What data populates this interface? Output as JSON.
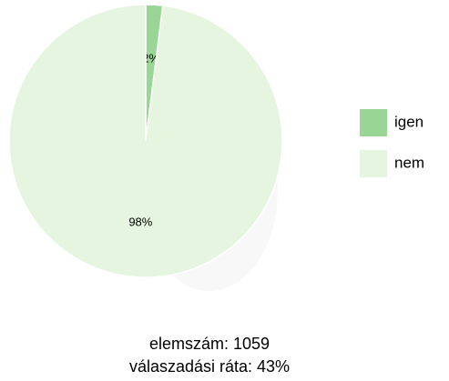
{
  "chart_data": {
    "type": "pie",
    "categories": [
      "igen",
      "nem"
    ],
    "values": [
      2,
      98
    ],
    "value_labels": [
      "2%",
      "98%"
    ],
    "colors": [
      "#99d594",
      "#e5f5e0"
    ],
    "legend": "right"
  },
  "footer": [
    "elemszám: 1059",
    "válaszadási ráta: 43%"
  ]
}
